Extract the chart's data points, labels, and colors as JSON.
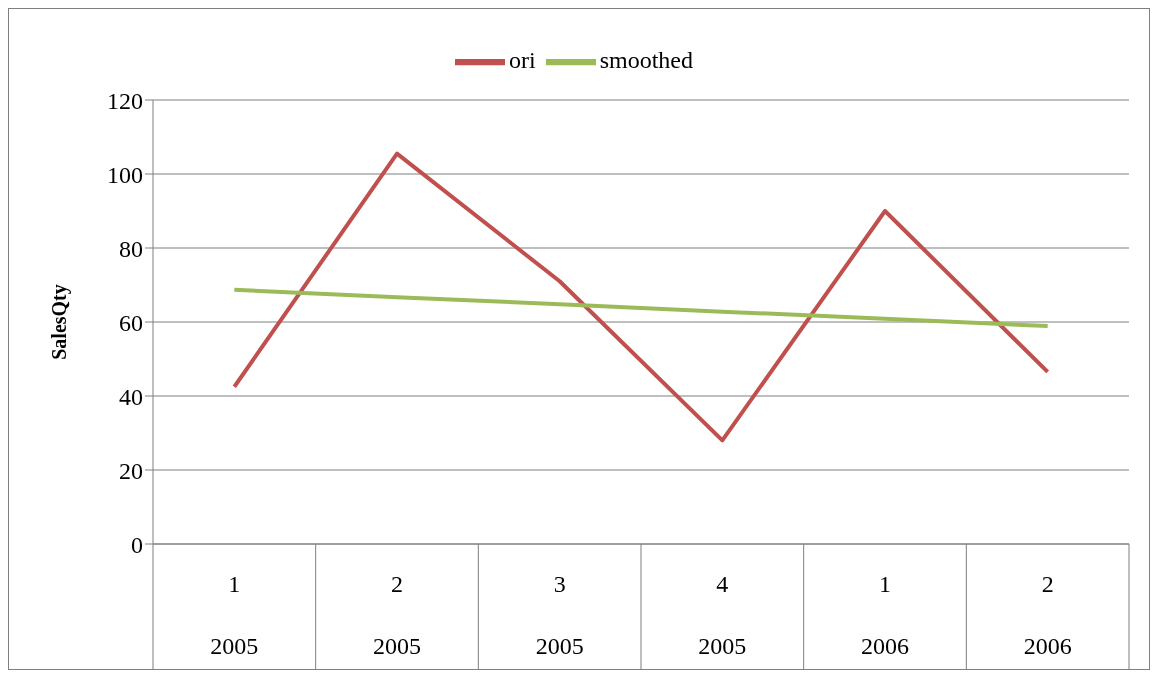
{
  "chart_data": {
    "type": "line",
    "ylabel": "SalesQty",
    "categories": [
      "1\n2005",
      "2\n2005",
      "3\n2005",
      "4\n2005",
      "1\n2006",
      "2\n2006"
    ],
    "series": [
      {
        "name": "ori",
        "color": "#c0504d",
        "values": [
          42.5,
          105.5,
          71,
          28,
          90,
          46.5
        ]
      },
      {
        "name": "smoothed",
        "color": "#9bbb59",
        "values": [
          68.7,
          66.7,
          64.8,
          62.8,
          60.9,
          58.9
        ]
      }
    ],
    "ylim": [
      0,
      120
    ],
    "yticks": [
      0,
      20,
      40,
      60,
      80,
      100,
      120
    ],
    "grid": "y",
    "legend": "top",
    "marker": "none",
    "line_style": "solid"
  }
}
